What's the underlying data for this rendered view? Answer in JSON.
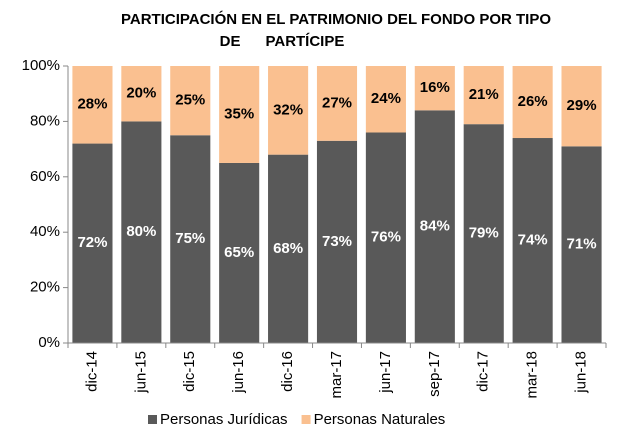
{
  "chart_data": {
    "type": "stacked_bar",
    "title": [
      "PARTICIPACIÓN EN EL PATRIMONIO DEL FONDO POR TIPO",
      "DE      PARTÍCIPE"
    ],
    "categories": [
      "dic-14",
      "jun-15",
      "dic-15",
      "jun-16",
      "dic-16",
      "mar-17",
      "jun-17",
      "sep-17",
      "dic-17",
      "mar-18",
      "jun-18"
    ],
    "series": [
      {
        "name": "Personas Jurídicas",
        "color": "#595959",
        "values": [
          72,
          80,
          75,
          65,
          68,
          73,
          76,
          84,
          79,
          74,
          71
        ],
        "value_labels": [
          "72%",
          "80%",
          "75%",
          "65%",
          "68%",
          "73%",
          "76%",
          "84%",
          "79%",
          "74%",
          "71%"
        ]
      },
      {
        "name": "Personas Naturales",
        "color": "#fac090",
        "values": [
          28,
          20,
          25,
          35,
          32,
          27,
          24,
          16,
          21,
          26,
          29
        ],
        "value_labels": [
          "28%",
          "20%",
          "25%",
          "35%",
          "32%",
          "27%",
          "24%",
          "16%",
          "21%",
          "26%",
          "29%"
        ]
      }
    ],
    "ylim": [
      0,
      100
    ],
    "yticks": [
      {
        "value": 0,
        "label": "0%"
      },
      {
        "value": 20,
        "label": "20%"
      },
      {
        "value": 40,
        "label": "40%"
      },
      {
        "value": 60,
        "label": "60%"
      },
      {
        "value": 80,
        "label": "80%"
      },
      {
        "value": 100,
        "label": "100%"
      }
    ],
    "legend": "bottom"
  }
}
